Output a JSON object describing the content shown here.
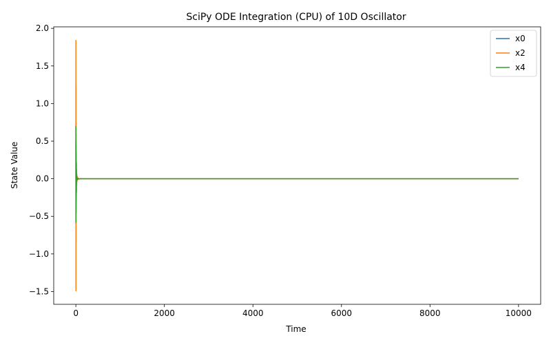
{
  "chart_data": {
    "type": "line",
    "title": "SciPy ODE Integration (CPU) of 10D Oscillator",
    "xlabel": "Time",
    "ylabel": "State Value",
    "xlim": [
      -500,
      10500
    ],
    "ylim": [
      -1.67,
      2.02
    ],
    "x_ticks": [
      0,
      2000,
      4000,
      6000,
      8000,
      10000
    ],
    "y_ticks": [
      -1.5,
      -1.0,
      -0.5,
      0.0,
      0.5,
      1.0,
      1.5,
      2.0
    ],
    "x_tick_labels": [
      "0",
      "2000",
      "4000",
      "6000",
      "8000",
      "10000"
    ],
    "y_tick_labels": [
      "−1.5",
      "−1.0",
      "−0.5",
      "0.0",
      "0.5",
      "1.0",
      "1.5",
      "2.0"
    ],
    "grid": false,
    "legend_position": "top-right",
    "series": [
      {
        "name": "x0",
        "color": "#1f77b4",
        "x": [
          0,
          2,
          4,
          6,
          8,
          10,
          12,
          14,
          16,
          18,
          20,
          25,
          30,
          40,
          50,
          70,
          100,
          150,
          200,
          500,
          1000,
          2000,
          4000,
          6000,
          8000,
          10000
        ],
        "y": [
          0.5,
          -0.55,
          0.6,
          -0.45,
          0.35,
          -0.3,
          0.22,
          -0.18,
          0.12,
          -0.09,
          0.06,
          -0.04,
          0.03,
          -0.015,
          0.008,
          -0.003,
          0.001,
          0,
          0,
          0,
          0,
          0,
          0,
          0,
          0,
          0
        ]
      },
      {
        "name": "x2",
        "color": "#ff7f0e",
        "x": [
          0,
          1,
          2,
          3,
          4,
          5,
          6,
          7,
          8,
          9,
          10,
          12,
          14,
          16,
          18,
          20,
          25,
          30,
          40,
          50,
          70,
          100,
          150,
          200,
          500,
          1000,
          2000,
          4000,
          6000,
          8000,
          10000
        ],
        "y": [
          0.0,
          1.84,
          -1.49,
          1.25,
          -0.85,
          0.75,
          -0.6,
          0.45,
          -0.35,
          0.3,
          -0.25,
          0.2,
          -0.15,
          0.12,
          -0.09,
          0.06,
          -0.04,
          0.03,
          -0.015,
          0.01,
          -0.004,
          0.001,
          0,
          0,
          0,
          0,
          0,
          0,
          0,
          0,
          0
        ]
      },
      {
        "name": "x4",
        "color": "#2ca02c",
        "x": [
          0,
          1,
          2,
          3,
          4,
          5,
          6,
          7,
          8,
          10,
          12,
          14,
          16,
          18,
          20,
          25,
          30,
          40,
          50,
          70,
          100,
          150,
          200,
          500,
          1000,
          2000,
          4000,
          6000,
          8000,
          10000
        ],
        "y": [
          0.7,
          -0.58,
          0.45,
          -0.4,
          0.3,
          -0.25,
          0.2,
          -0.15,
          0.12,
          -0.09,
          0.07,
          -0.05,
          0.04,
          -0.03,
          0.02,
          -0.012,
          0.008,
          -0.004,
          0.002,
          -0.001,
          0,
          0,
          0,
          0,
          0,
          0,
          0,
          0,
          0,
          0
        ]
      }
    ]
  }
}
